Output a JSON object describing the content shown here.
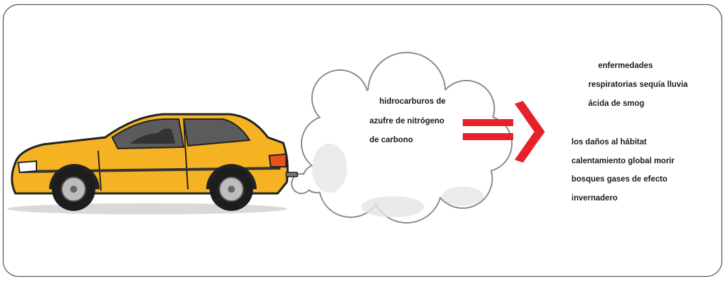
{
  "cloud_text": {
    "lines": [
      "hidrocarburos de",
      "azufre de nitrógeno",
      "de carbono"
    ]
  },
  "effects": [
    {
      "lines": [
        "enfermedades",
        "respiratorias sequía lluvia",
        "ácida de smog"
      ]
    },
    {
      "lines": [
        "los daños al hábitat",
        "calentamiento global morir",
        "bosques gases de efecto",
        "invernadero"
      ]
    }
  ]
}
